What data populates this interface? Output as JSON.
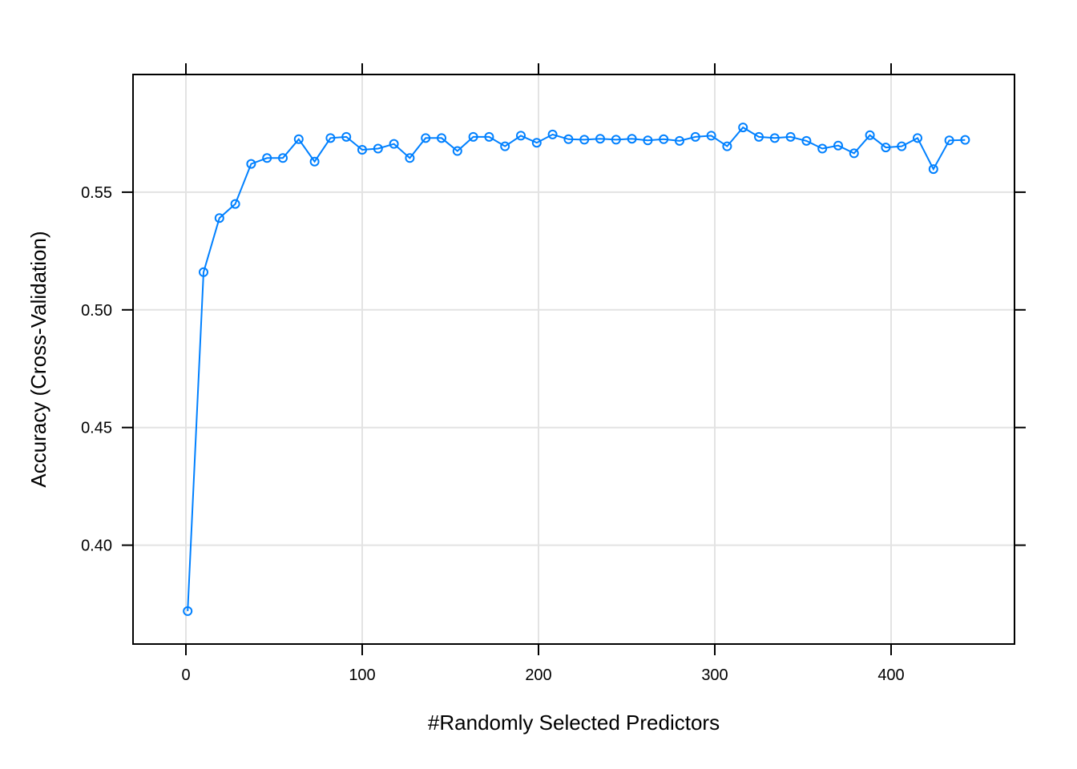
{
  "chart_data": {
    "type": "line",
    "title": "",
    "xlabel": "#Randomly Selected Predictors",
    "ylabel": "Accuracy (Cross-Validation)",
    "xlim": [
      -30,
      470
    ],
    "ylim": [
      0.358,
      0.6
    ],
    "x_ticks": [
      0,
      100,
      200,
      300,
      400
    ],
    "x_tick_labels": [
      "0",
      "100",
      "200",
      "300",
      "400"
    ],
    "y_ticks": [
      0.4,
      0.45,
      0.5,
      0.55
    ],
    "y_tick_labels": [
      "0.40",
      "0.45",
      "0.50",
      "0.55"
    ],
    "grid": true,
    "line_color": "#0080ff",
    "marker": "open-circle",
    "series": [
      {
        "x": [
          1,
          10,
          19,
          28,
          37,
          46,
          55,
          64,
          73,
          82,
          91,
          100,
          109,
          118,
          127,
          136,
          145,
          154,
          163,
          172,
          181,
          190,
          199,
          208,
          217,
          226,
          235,
          244,
          253,
          262,
          271,
          280,
          289,
          298,
          307,
          316,
          325,
          334,
          343,
          352,
          361,
          370,
          379,
          388,
          397,
          406,
          415,
          424,
          433,
          442
        ],
        "y": [
          0.372,
          0.516,
          0.539,
          0.545,
          0.562,
          0.5645,
          0.5645,
          0.5725,
          0.563,
          0.573,
          0.5735,
          0.568,
          0.5685,
          0.5705,
          0.5645,
          0.573,
          0.573,
          0.5675,
          0.5735,
          0.5735,
          0.5695,
          0.574,
          0.571,
          0.5745,
          0.5725,
          0.5723,
          0.5727,
          0.5723,
          0.5727,
          0.572,
          0.5725,
          0.5718,
          0.5735,
          0.574,
          0.5695,
          0.5775,
          0.5735,
          0.573,
          0.5735,
          0.5718,
          0.5685,
          0.5698,
          0.5665,
          0.5742,
          0.569,
          0.5695,
          0.573,
          0.5598,
          0.572,
          0.5722
        ]
      }
    ]
  }
}
